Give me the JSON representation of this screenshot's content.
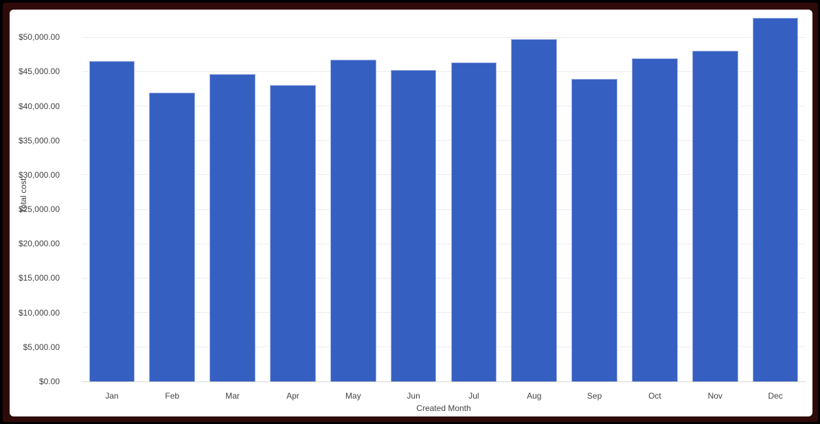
{
  "frame": {
    "outer_border_color": "#000000",
    "inner_border_color": "#2e0a08",
    "panel_color": "#ffffff"
  },
  "chart_data": {
    "type": "bar",
    "title": "",
    "xlabel": "Created Month",
    "ylabel": "Total cost",
    "categories": [
      "Jan",
      "Feb",
      "Mar",
      "Apr",
      "May",
      "Jun",
      "Jul",
      "Aug",
      "Sep",
      "Oct",
      "Nov",
      "Dec"
    ],
    "series": [
      {
        "name": "Total cost",
        "values": [
          46500,
          41900,
          44600,
          43000,
          46700,
          45200,
          46300,
          49700,
          43900,
          46900,
          48000,
          52800
        ]
      }
    ],
    "y_ticks": [
      0,
      5000,
      10000,
      15000,
      20000,
      25000,
      30000,
      35000,
      40000,
      45000,
      50000
    ],
    "y_tick_labels": [
      "$0.00",
      "$5,000.00",
      "$10,000.00",
      "$15,000.00",
      "$20,000.00",
      "$25,000.00",
      "$30,000.00",
      "$35,000.00",
      "$40,000.00",
      "$45,000.00",
      "$50,000.00"
    ],
    "ylim": [
      0,
      54000
    ],
    "grid": true,
    "legend": "none",
    "bar_color": "#3560c2",
    "bar_border_color": "#a3b3e4",
    "gridline_color": "#ececec",
    "baseline_color": "#d6d6d6",
    "label_color": "#424242"
  }
}
